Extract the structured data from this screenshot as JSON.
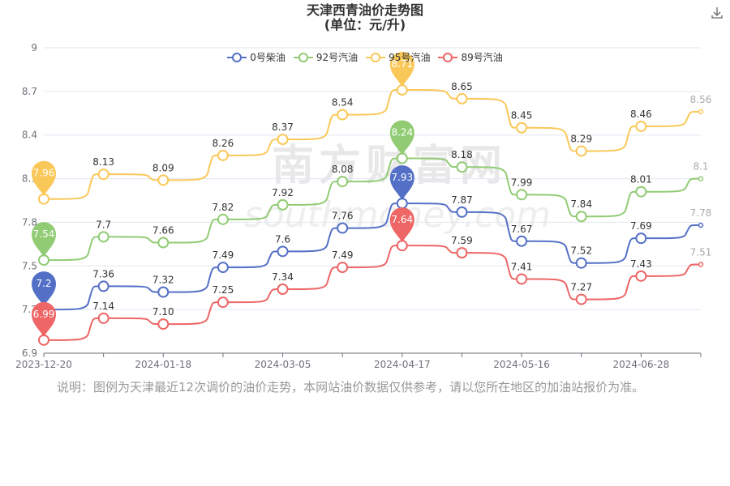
{
  "title": "天津西青油价走势图",
  "subtitle": "(单位：元/升)",
  "download_icon": "download-icon",
  "watermark": "南方财富网 southmoney.com",
  "note": "说明：图例为天津最近12次调价的油价走势，本网站油价数据仅供参考，请以您所在地区的加油站报价为准。",
  "chart_data": {
    "type": "line",
    "ylim": [
      6.9,
      9
    ],
    "yticks": [
      "6.9",
      "7.2",
      "7.5",
      "7.8",
      "8.1",
      "8.4",
      "8.7",
      "9"
    ],
    "xtick_labels": [
      "2023-12-20",
      "2024-01-18",
      "2024-03-05",
      "2024-04-17",
      "2024-05-16",
      "2024-06-28"
    ],
    "xtick_at": [
      0,
      2,
      4,
      6,
      8,
      10
    ],
    "series": [
      {
        "name": "0号柴油",
        "color": "#5470c6",
        "values": [
          7.2,
          7.36,
          7.32,
          7.49,
          7.6,
          7.76,
          7.93,
          7.87,
          7.67,
          7.52,
          7.69,
          7.78
        ],
        "labels": [
          "7.2",
          "7.36",
          "7.32",
          "7.49",
          "7.6",
          "7.76",
          "7.93",
          "7.87",
          "7.67",
          "7.52",
          "7.69",
          "7.78"
        ],
        "max_pin": "7.93",
        "min_pin": "7.2"
      },
      {
        "name": "92号汽油",
        "color": "#91cc75",
        "values": [
          7.54,
          7.7,
          7.66,
          7.82,
          7.92,
          8.08,
          8.24,
          8.18,
          7.99,
          7.84,
          8.01,
          8.1
        ],
        "labels": [
          "7.54",
          "7.7",
          "7.66",
          "7.82",
          "7.92",
          "8.08",
          "8.24",
          "8.18",
          "7.99",
          "7.84",
          "8.01",
          "8.1"
        ],
        "max_pin": "8.24",
        "min_pin": "7.54"
      },
      {
        "name": "95号汽油",
        "color": "#fac858",
        "values": [
          7.96,
          8.13,
          8.09,
          8.26,
          8.37,
          8.54,
          8.71,
          8.65,
          8.45,
          8.29,
          8.46,
          8.56
        ],
        "labels": [
          "7.96",
          "8.13",
          "8.09",
          "8.26",
          "8.37",
          "8.54",
          "8.71",
          "8.65",
          "8.45",
          "8.29",
          "8.46",
          "8.56"
        ],
        "max_pin": "8.71",
        "min_pin": "7.96"
      },
      {
        "name": "89号汽油",
        "color": "#ee6666",
        "values": [
          6.99,
          7.14,
          7.1,
          7.25,
          7.34,
          7.49,
          7.64,
          7.59,
          7.41,
          7.27,
          7.43,
          7.51
        ],
        "labels": [
          "6.99",
          "7.14",
          "7.10",
          "7.25",
          "7.34",
          "7.49",
          "7.64",
          "7.59",
          "7.41",
          "7.27",
          "7.43",
          "7.51"
        ],
        "max_pin": "7.64",
        "min_pin": "6.99"
      }
    ],
    "legend_position": "top-center",
    "grid": true
  }
}
